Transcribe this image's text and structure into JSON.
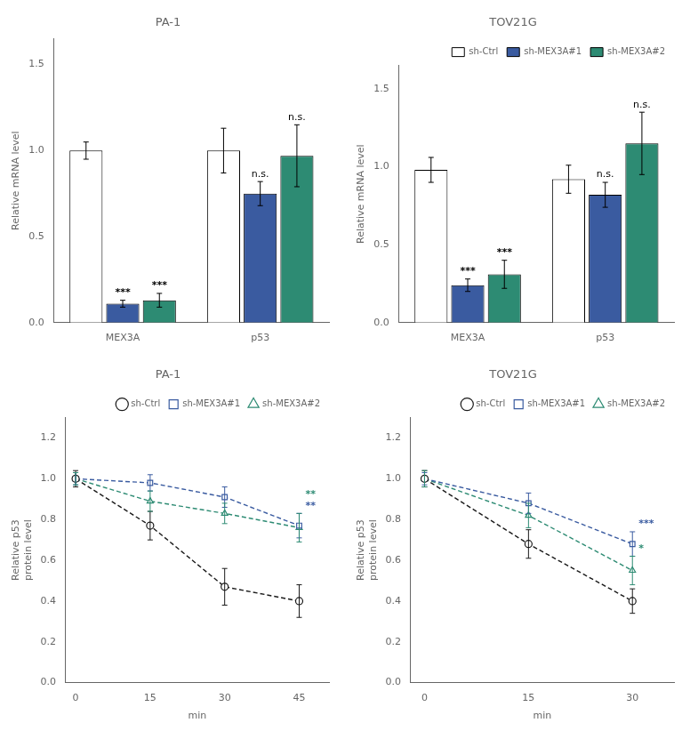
{
  "chart_data": [
    {
      "type": "bar",
      "title": "PA-1",
      "categories": [
        "MEX3A",
        "p53"
      ],
      "series": [
        {
          "name": "sh-Ctrl",
          "color": "#ffffff",
          "values": [
            1.0,
            1.0
          ],
          "errors": [
            0.05,
            0.13
          ]
        },
        {
          "name": "sh-MEX3A#1",
          "color": "#3a5ba0",
          "values": [
            0.11,
            0.75
          ],
          "errors": [
            0.02,
            0.07
          ]
        },
        {
          "name": "sh-MEX3A#2",
          "color": "#2d8b73",
          "values": [
            0.13,
            0.97
          ],
          "errors": [
            0.04,
            0.18
          ]
        }
      ],
      "ylabel": "Relative mRNA level",
      "ylim": [
        0,
        1.65
      ],
      "yticks": [
        {
          "value": 0,
          "label": "0.0"
        },
        0.5,
        {
          "value": 1.0,
          "label": "1.0"
        },
        1.5
      ],
      "grid": false,
      "annotations": [
        {
          "text": "***",
          "category": "MEX3A",
          "series": "sh-MEX3A#1"
        },
        {
          "text": "n.s.",
          "category": "p53",
          "series": "sh-MEX3A#1"
        },
        {
          "text": "***",
          "category": "MEX3A",
          "series": "sh-MEX3A#2"
        },
        {
          "text": "n.s.",
          "category": "p53",
          "series": "sh-MEX3A#2"
        }
      ]
    },
    {
      "type": "bar",
      "title": "TOV21G",
      "categories": [
        "MEX3A",
        "p53"
      ],
      "series": [
        {
          "name": "sh-Ctrl",
          "color": "#ffffff",
          "values": [
            0.98,
            0.92
          ],
          "errors": [
            0.08,
            0.09
          ]
        },
        {
          "name": "sh-MEX3A#1",
          "color": "#3a5ba0",
          "values": [
            0.24,
            0.82
          ],
          "errors": [
            0.04,
            0.08
          ]
        },
        {
          "name": "sh-MEX3A#2",
          "color": "#2d8b73",
          "values": [
            0.31,
            1.15
          ],
          "errors": [
            0.09,
            0.2
          ]
        }
      ],
      "ylabel": "Relative mRNA level",
      "ylim": [
        0,
        1.65
      ],
      "yticks": [
        {
          "value": 0,
          "label": "0.0"
        },
        0.5,
        {
          "value": 1.0,
          "label": "1.0"
        },
        1.5
      ],
      "grid": false,
      "legend": "upper right",
      "annotations": [
        {
          "text": "***",
          "category": "MEX3A",
          "series": "sh-MEX3A#1"
        },
        {
          "text": "n.s.",
          "category": "p53",
          "series": "sh-MEX3A#1"
        },
        {
          "text": "***",
          "category": "MEX3A",
          "series": "sh-MEX3A#2"
        },
        {
          "text": "n.s.",
          "category": "p53",
          "series": "sh-MEX3A#2"
        }
      ]
    },
    {
      "type": "line",
      "title": "PA-1",
      "x": [
        0,
        15,
        30,
        45
      ],
      "series": [
        {
          "name": "sh-Ctrl",
          "color": "#1a1a1a",
          "marker": "circle",
          "line_style": "dashed",
          "values": [
            1.0,
            0.77,
            0.47,
            0.4
          ],
          "errors": [
            0.04,
            0.07,
            0.09,
            0.08
          ]
        },
        {
          "name": "sh-MEX3A#1",
          "color": "#3a5ba0",
          "marker": "square",
          "line_style": "dashed",
          "values": [
            1.0,
            0.98,
            0.91,
            0.77
          ],
          "errors": [
            0.03,
            0.04,
            0.05,
            0.06
          ]
        },
        {
          "name": "sh-MEX3A#2",
          "color": "#2d8b73",
          "marker": "triangle",
          "line_style": "dashed",
          "values": [
            1.0,
            0.89,
            0.83,
            0.76
          ],
          "errors": [
            0.03,
            0.05,
            0.05,
            0.07
          ]
        }
      ],
      "xlabel": "min",
      "ylabel": "Relative p53\nprotein level",
      "xlim": [
        -2,
        51
      ],
      "xticks": [
        0,
        15,
        30,
        45
      ],
      "ylim": [
        0.0,
        1.3
      ],
      "yticks": [
        {
          "value": 0,
          "label": "0.0"
        },
        0.2,
        0.4,
        0.6,
        0.8,
        {
          "value": 1,
          "label": "1.0"
        },
        1.2
      ],
      "grid": false,
      "legend": "upper right",
      "annotations": [
        {
          "text": "**",
          "x": 45,
          "series": "sh-MEX3A#1"
        },
        {
          "text": "**",
          "x": 45,
          "series": "sh-MEX3A#2"
        }
      ]
    },
    {
      "type": "line",
      "title": "TOV21G",
      "x": [
        0,
        15,
        30
      ],
      "series": [
        {
          "name": "sh-Ctrl",
          "color": "#1a1a1a",
          "marker": "circle",
          "line_style": "dashed",
          "values": [
            1.0,
            0.68,
            0.4
          ],
          "errors": [
            0.04,
            0.07,
            0.06
          ]
        },
        {
          "name": "sh-MEX3A#1",
          "color": "#3a5ba0",
          "marker": "square",
          "line_style": "dashed",
          "values": [
            1.0,
            0.88,
            0.68
          ],
          "errors": [
            0.03,
            0.05,
            0.06
          ]
        },
        {
          "name": "sh-MEX3A#2",
          "color": "#2d8b73",
          "marker": "triangle",
          "line_style": "dashed",
          "values": [
            1.0,
            0.82,
            0.55
          ],
          "errors": [
            0.04,
            0.06,
            0.07
          ]
        }
      ],
      "xlabel": "min",
      "ylabel": "Relative p53\nprotein level",
      "xlim": [
        -2,
        36
      ],
      "xticks": [
        0,
        15,
        30
      ],
      "ylim": [
        0.0,
        1.3
      ],
      "yticks": [
        {
          "value": 0,
          "label": "0.0"
        },
        0.2,
        0.4,
        0.6,
        0.8,
        {
          "value": 1,
          "label": "1.0"
        },
        1.2
      ],
      "grid": false,
      "legend": "upper right",
      "annotations": [
        {
          "text": "***",
          "x": 30,
          "series": "sh-MEX3A#1"
        },
        {
          "text": "*",
          "x": 30,
          "series": "sh-MEX3A#2"
        }
      ]
    }
  ]
}
